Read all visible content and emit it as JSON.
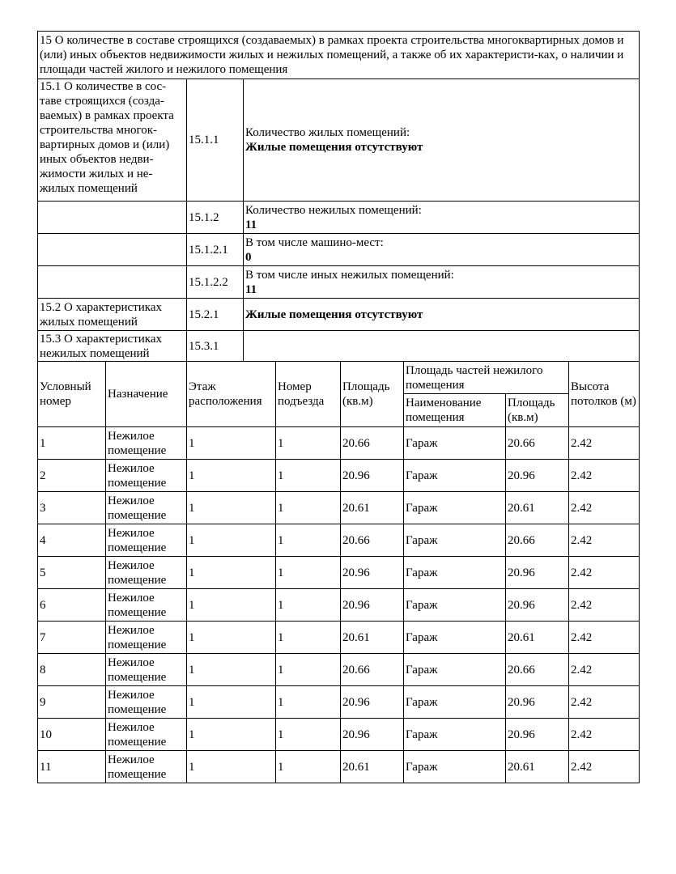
{
  "section15": {
    "title": "15 О количестве в составе строящихся (создаваемых) в рамках проекта строительства многоквартирных домов и (или) иных объектов недвижимости жилых и нежилых помещений, а также об их характеристи-ках, о наличии и площади частей жилого и нежилого помещения",
    "s151_label": "15.1 О количестве в сос-таве строящихся (созда-ваемых) в рамках проекта строительства многок-вартирных домов и (или) иных объектов недви-жимости жилых и не-жилых помещений",
    "r1511": {
      "code": "15.1.1",
      "label": "Количество жилых помещений:",
      "value": "Жилые помещения отсутствуют"
    },
    "r1512": {
      "code": "15.1.2",
      "label": "Количество нежилых помещений:",
      "value": "11"
    },
    "r15121": {
      "code": "15.1.2.1",
      "label": "В том числе машино-мест:",
      "value": "0"
    },
    "r15122": {
      "code": "15.1.2.2",
      "label": "В том числе иных нежилых помещений:",
      "value": "11"
    },
    "s152": {
      "label": "15.2 О характеристиках жилых помещений",
      "code": "15.2.1",
      "value": "Жилые помещения отсутствуют"
    },
    "s153": {
      "label": "15.3 О характеристиках нежилых помещений",
      "code": "15.3.1",
      "value": ""
    }
  },
  "table": {
    "headers": {
      "num": "Условный номер",
      "purpose": "Назначение",
      "floor": "Этаж расположения",
      "entrance": "Номер подъезда",
      "area": "Площадь (кв.м)",
      "parts": "Площадь частей нежилого помещения",
      "part_name": "Наименование помещения",
      "part_area": "Площадь (кв.м)",
      "height": "Высота потолков (м)"
    },
    "rows": [
      [
        "1",
        "Нежилое помещение",
        "1",
        "1",
        "20.66",
        "Гараж",
        "20.66",
        "2.42"
      ],
      [
        "2",
        "Нежилое помещение",
        "1",
        "1",
        "20.96",
        "Гараж",
        "20.96",
        "2.42"
      ],
      [
        "3",
        "Нежилое помещение",
        "1",
        "1",
        "20.61",
        "Гараж",
        "20.61",
        "2.42"
      ],
      [
        "4",
        "Нежилое помещение",
        "1",
        "1",
        "20.66",
        "Гараж",
        "20.66",
        "2.42"
      ],
      [
        "5",
        "Нежилое помещение",
        "1",
        "1",
        "20.96",
        "Гараж",
        "20.96",
        "2.42"
      ],
      [
        "6",
        "Нежилое помещение",
        "1",
        "1",
        "20.96",
        "Гараж",
        "20.96",
        "2.42"
      ],
      [
        "7",
        "Нежилое помещение",
        "1",
        "1",
        "20.61",
        "Гараж",
        "20.61",
        "2.42"
      ],
      [
        "8",
        "Нежилое помещение",
        "1",
        "1",
        "20.66",
        "Гараж",
        "20.66",
        "2.42"
      ],
      [
        "9",
        "Нежилое помещение",
        "1",
        "1",
        "20.96",
        "Гараж",
        "20.96",
        "2.42"
      ],
      [
        "10",
        "Нежилое помещение",
        "1",
        "1",
        "20.96",
        "Гараж",
        "20.96",
        "2.42"
      ],
      [
        "11",
        "Нежилое помещение",
        "1",
        "1",
        "20.61",
        "Гараж",
        "20.61",
        "2.42"
      ]
    ]
  }
}
